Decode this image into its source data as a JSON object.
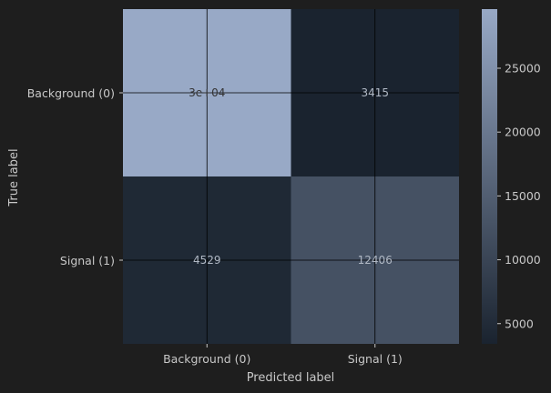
{
  "chart_data": {
    "type": "heatmap",
    "title": "",
    "xlabel": "Predicted label",
    "ylabel": "True label",
    "x_categories": [
      "Background (0)",
      "Signal (1)"
    ],
    "y_categories": [
      "Background (0)",
      "Signal (1)"
    ],
    "values": [
      [
        29631,
        3415
      ],
      [
        4529,
        12406
      ]
    ],
    "cell_labels": [
      [
        "3e+04",
        "3415"
      ],
      [
        "4529",
        "12406"
      ]
    ],
    "colorbar": {
      "min": 3415,
      "max": 29631,
      "ticks": [
        5000,
        10000,
        15000,
        20000,
        25000
      ],
      "tick_labels": [
        "5000",
        "10000",
        "15000",
        "20000",
        "25000"
      ],
      "color_low": "#1a232f",
      "color_high": "#98a9c6"
    },
    "grid": true,
    "colors": {
      "background": "#1e1e1e",
      "text": "#c8c8c8",
      "cell_text_on_dark": "#b0b8c4",
      "cell_text_on_light": "#333333",
      "grid_line": "#000000"
    }
  }
}
